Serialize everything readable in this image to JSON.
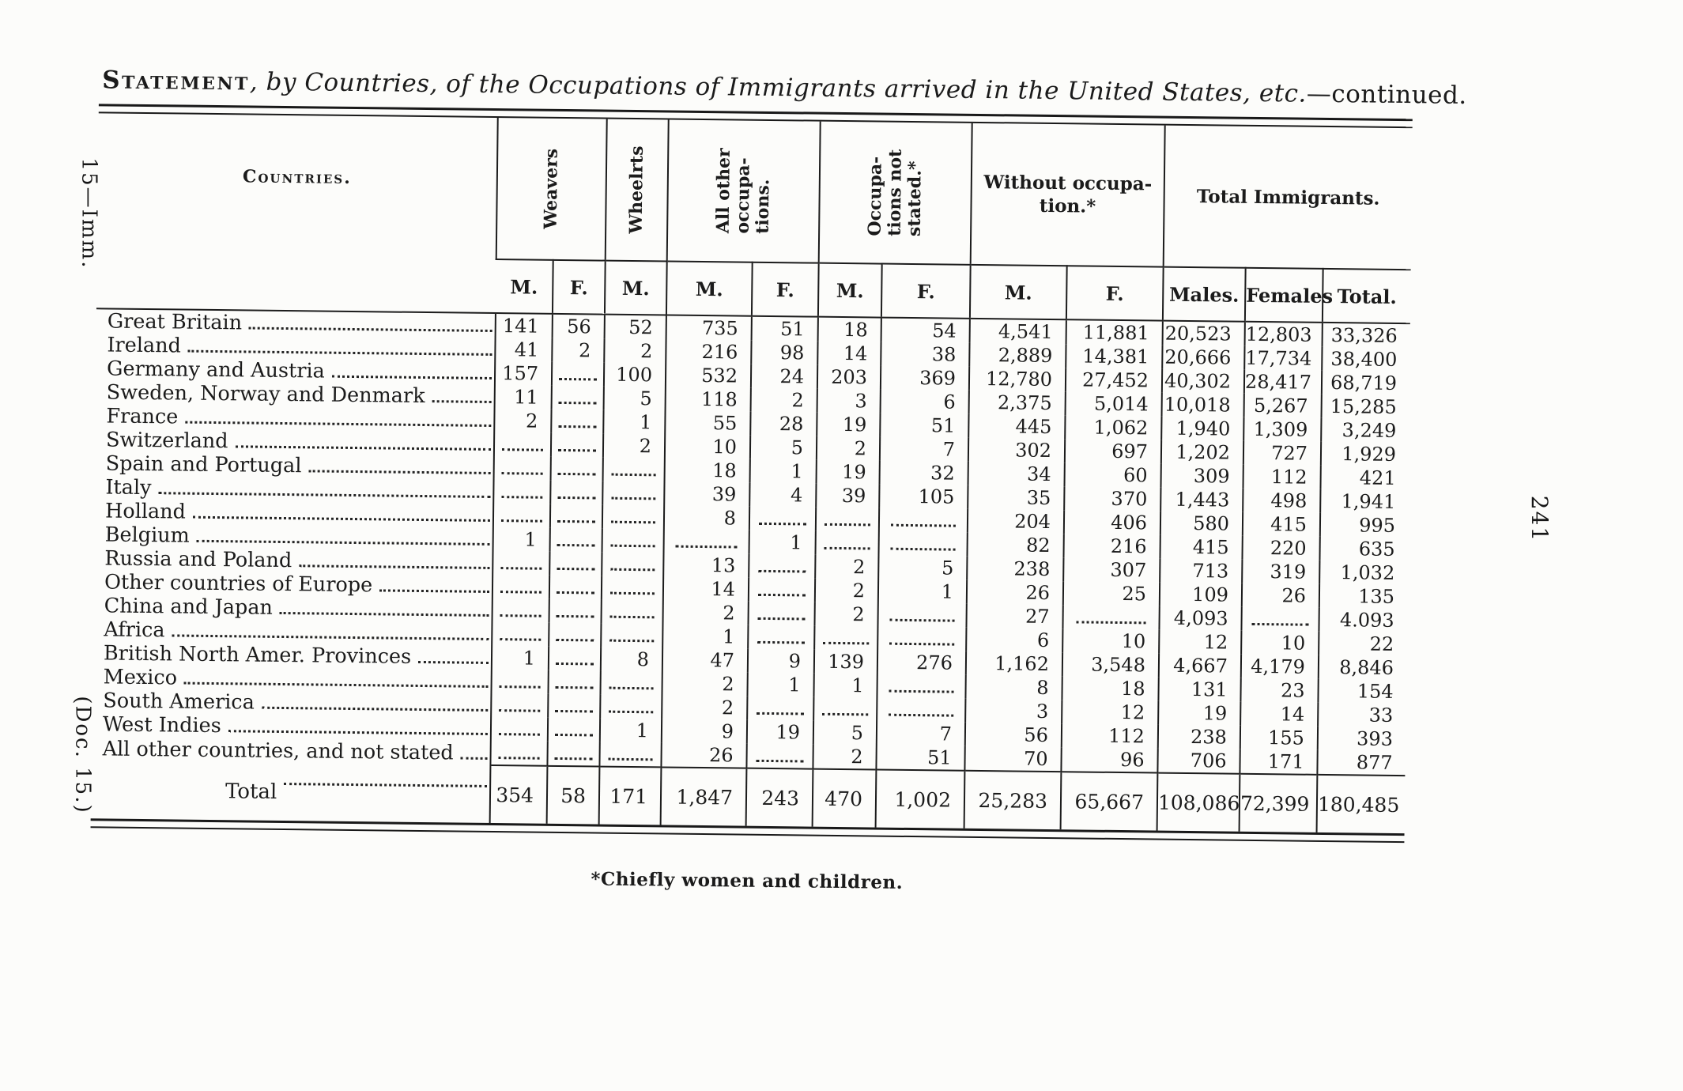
{
  "page": {
    "background": "#fcfcfa",
    "ink_color": "#1b1b1b",
    "margin_note_top_left": "15—Imm.",
    "margin_note_bottom_left": "(Doc. 15.)",
    "page_number": "241",
    "footnote": "*Chiefly women and children."
  },
  "title": {
    "smallcaps": "Statement",
    "italic": ", by Countries, of the Occupations of Immigrants arrived in the United States, etc.",
    "tail": "—continued."
  },
  "table": {
    "countries_header": "Countries.",
    "groups": [
      {
        "label": "Weavers",
        "orientation": "vertical",
        "colspan": 2
      },
      {
        "label": "Wheelrts",
        "orientation": "vertical",
        "colspan": 1
      },
      {
        "label": "All other\noccupa-\ntions.",
        "orientation": "vertical",
        "colspan": 2
      },
      {
        "label": "Occupa-\ntions not\nstated.*",
        "orientation": "vertical",
        "colspan": 2
      },
      {
        "label": "Without occupa-\ntion.*",
        "orientation": "horizontal",
        "colspan": 2
      },
      {
        "label": "Total Immigrants.",
        "orientation": "horizontal",
        "colspan": 3
      }
    ],
    "sub_headers": [
      "M.",
      "F.",
      "M.",
      "M.",
      "F.",
      "M.",
      "F.",
      "M.",
      "F.",
      "Males.",
      "Females",
      "Total."
    ],
    "rows": [
      {
        "country": "Great Britain",
        "values": [
          "141",
          "56",
          "52",
          "735",
          "51",
          "18",
          "54",
          "4,541",
          "11,881",
          "20,523",
          "12,803",
          "33,326"
        ]
      },
      {
        "country": "Ireland",
        "values": [
          "41",
          "2",
          "2",
          "216",
          "98",
          "14",
          "38",
          "2,889",
          "14,381",
          "20,666",
          "17,734",
          "38,400"
        ]
      },
      {
        "country": "Germany and Austria",
        "values": [
          "157",
          "",
          "100",
          "532",
          "24",
          "203",
          "369",
          "12,780",
          "27,452",
          "40,302",
          "28,417",
          "68,719"
        ]
      },
      {
        "country": "Sweden, Norway and Denmark",
        "values": [
          "11",
          "",
          "5",
          "118",
          "2",
          "3",
          "6",
          "2,375",
          "5,014",
          "10,018",
          "5,267",
          "15,285"
        ]
      },
      {
        "country": "France",
        "values": [
          "2",
          "",
          "1",
          "55",
          "28",
          "19",
          "51",
          "445",
          "1,062",
          "1,940",
          "1,309",
          "3,249"
        ]
      },
      {
        "country": "Switzerland",
        "values": [
          "",
          "",
          "2",
          "10",
          "5",
          "2",
          "7",
          "302",
          "697",
          "1,202",
          "727",
          "1,929"
        ]
      },
      {
        "country": "Spain and Portugal",
        "values": [
          "",
          "",
          "",
          "18",
          "1",
          "19",
          "32",
          "34",
          "60",
          "309",
          "112",
          "421"
        ]
      },
      {
        "country": "Italy",
        "values": [
          "",
          "",
          "",
          "39",
          "4",
          "39",
          "105",
          "35",
          "370",
          "1,443",
          "498",
          "1,941"
        ]
      },
      {
        "country": "Holland",
        "values": [
          "",
          "",
          "",
          "8",
          "",
          "",
          "",
          "204",
          "406",
          "580",
          "415",
          "995"
        ]
      },
      {
        "country": "Belgium",
        "values": [
          "1",
          "",
          "",
          "",
          "1",
          "",
          "",
          "82",
          "216",
          "415",
          "220",
          "635"
        ]
      },
      {
        "country": "Russia and Poland",
        "values": [
          "",
          "",
          "",
          "13",
          "",
          "2",
          "5",
          "238",
          "307",
          "713",
          "319",
          "1,032"
        ]
      },
      {
        "country": "Other countries of Europe",
        "values": [
          "",
          "",
          "",
          "14",
          "",
          "2",
          "1",
          "26",
          "25",
          "109",
          "26",
          "135"
        ]
      },
      {
        "country": "China and Japan",
        "values": [
          "",
          "",
          "",
          "2",
          "",
          "2",
          "",
          "27",
          "",
          "4,093",
          "",
          "4.093"
        ]
      },
      {
        "country": "Africa",
        "values": [
          "",
          "",
          "",
          "1",
          "",
          "",
          "",
          "6",
          "10",
          "12",
          "10",
          "22"
        ]
      },
      {
        "country": "British North Amer. Provinces",
        "values": [
          "1",
          "",
          "8",
          "47",
          "9",
          "139",
          "276",
          "1,162",
          "3,548",
          "4,667",
          "4,179",
          "8,846"
        ]
      },
      {
        "country": "Mexico",
        "values": [
          "",
          "",
          "",
          "2",
          "1",
          "1",
          "",
          "8",
          "18",
          "131",
          "23",
          "154"
        ]
      },
      {
        "country": "South America",
        "values": [
          "",
          "",
          "",
          "2",
          "",
          "",
          "",
          "3",
          "12",
          "19",
          "14",
          "33"
        ]
      },
      {
        "country": "West Indies",
        "values": [
          "",
          "",
          "1",
          "9",
          "19",
          "5",
          "7",
          "56",
          "112",
          "238",
          "155",
          "393"
        ]
      },
      {
        "country": "All other countries, and not stated",
        "values": [
          "",
          "",
          "",
          "26",
          "",
          "2",
          "51",
          "70",
          "96",
          "706",
          "171",
          "877"
        ]
      }
    ],
    "total_row": {
      "label": "Total",
      "values": [
        "354",
        "58",
        "171",
        "1,847",
        "243",
        "470",
        "1,002",
        "25,283",
        "65,667",
        "108,086",
        "72,399",
        "180,485"
      ]
    }
  }
}
